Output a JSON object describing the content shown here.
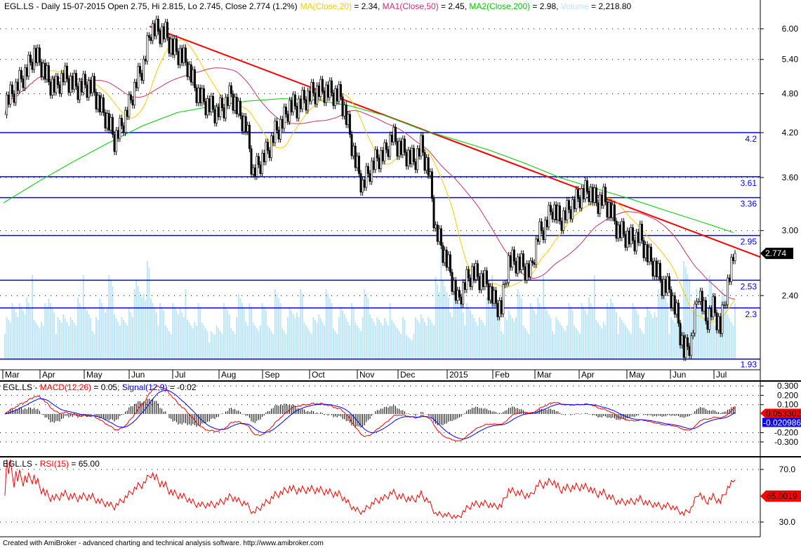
{
  "header": {
    "symbol": "EGL.LS",
    "prefix": "EGL.LS - Daily 15-07-2015 Open 2.75, Hi 2.815, Lo 2.745, Close 2.774 (1.2%)",
    "ma_label": "MA(Close,20)",
    "ma_value": " = 2.34, ",
    "ma1_label": "MA1(Close,50)",
    "ma1_value": " = 2.45, ",
    "ma2_label": "MA2(Close,200)",
    "ma2_value": " = 2.98, ",
    "vol_label": "Volume",
    "vol_value": " = 2,218.80"
  },
  "macd_header": {
    "prefix": "EGL.LS - ",
    "macd_label": "MACD(12,26)",
    "macd_value": " = 0.05, ",
    "signal_label": "Signal(12,9)",
    "signal_value": " = -0.02"
  },
  "rsi_header": {
    "prefix": "EGL.LS - ",
    "rsi_label": "RSI(15)",
    "rsi_value": " = 65.00"
  },
  "footer": "Created with AmiBroker - advanced charting and technical analysis software. http://www.amibroker.com",
  "colors": {
    "ma": "#ffcc00",
    "ma1": "#cc3366",
    "ma2": "#00cc00",
    "volume": "#bfe6f5",
    "trend": "#ff0000",
    "levels": "#0000ff",
    "macd": "#ff0000",
    "signal": "#0000ff",
    "rsi": "#ff0000"
  },
  "chart_data": [
    {
      "type": "candlestick",
      "scale": "log",
      "y_ticks": [
        "6.00",
        "5.40",
        "4.80",
        "4.20",
        "3.60",
        "3.00",
        "2.40"
      ],
      "x_ticks": [
        "Mar",
        "Apr",
        "May",
        "Jun",
        "Jul",
        "Aug",
        "Sep",
        "Oct",
        "Nov",
        "Dec",
        "2015",
        "Feb",
        "Mar",
        "Apr",
        "May",
        "Jun",
        "Jul"
      ],
      "last_price": "2.774",
      "levels": [
        {
          "value": 4.2,
          "label": "4.2"
        },
        {
          "value": 3.61,
          "label": "3.61"
        },
        {
          "value": 3.36,
          "label": "3.36"
        },
        {
          "value": 2.95,
          "label": "2.95"
        },
        {
          "value": 2.53,
          "label": "2.53"
        },
        {
          "value": 2.3,
          "label": "2.3"
        },
        {
          "value": 1.93,
          "label": "1.93"
        }
      ],
      "trendline": {
        "from": 6.05,
        "to": 2.74
      },
      "close": [
        4.65,
        4.8,
        5.0,
        5.2,
        5.5,
        5.3,
        5.0,
        4.9,
        5.1,
        5.0,
        4.9,
        4.95,
        4.9,
        4.6,
        4.4,
        4.1,
        4.3,
        4.6,
        5.0,
        5.3,
        6.0,
        5.95,
        5.9,
        5.6,
        5.5,
        5.3,
        4.9,
        4.7,
        4.6,
        4.5,
        4.6,
        4.8,
        4.5,
        4.3,
        3.65,
        3.8,
        3.95,
        4.2,
        4.35,
        4.6,
        4.6,
        4.7,
        4.8,
        4.85,
        4.85,
        4.8,
        4.75,
        4.3,
        3.8,
        3.5,
        3.7,
        3.85,
        3.9,
        4.15,
        4.0,
        3.9,
        3.8,
        4.0,
        3.7,
        3.0,
        2.8,
        2.6,
        2.35,
        2.5,
        2.6,
        2.55,
        2.5,
        2.35,
        2.3,
        2.7,
        2.7,
        2.65,
        2.6,
        2.95,
        3.05,
        3.25,
        3.1,
        3.2,
        3.3,
        3.4,
        3.45,
        3.3,
        3.35,
        3.2,
        3.0,
        2.95,
        2.9,
        2.95,
        2.75,
        2.65,
        2.5,
        2.45,
        2.25,
        1.98,
        2.05,
        2.45,
        2.2,
        2.3,
        2.15,
        2.5,
        2.774
      ],
      "ma200": [
        3.3,
        3.55,
        3.8,
        4.05,
        4.3,
        4.5,
        4.6,
        4.68,
        4.72,
        4.7,
        4.6,
        4.45,
        4.25,
        4.1,
        3.95,
        3.78,
        3.6,
        3.47,
        3.35,
        3.22,
        3.1,
        2.98
      ],
      "volume": [
        3,
        5,
        4,
        6,
        3,
        4,
        5,
        3,
        4,
        3,
        6,
        4,
        3,
        5,
        6,
        4,
        3,
        5,
        6,
        7,
        5,
        4,
        3,
        4,
        5,
        3,
        4,
        3,
        2,
        3,
        4,
        3,
        5,
        4,
        3,
        4,
        3,
        5,
        3,
        4,
        5,
        3,
        3,
        4,
        5,
        3,
        4,
        4,
        3,
        5,
        4,
        3,
        4,
        3,
        3,
        2,
        3,
        4,
        3,
        8,
        6,
        5,
        5,
        4,
        4,
        3,
        6,
        5,
        3,
        4,
        5,
        3,
        4,
        6,
        4,
        3,
        3,
        4,
        3,
        4,
        6,
        3,
        4,
        5,
        3,
        3,
        4,
        3,
        4,
        5,
        6,
        3,
        4,
        7,
        5,
        4,
        6,
        3,
        5,
        4,
        4
      ]
    },
    {
      "type": "line",
      "name": "MACD",
      "y_ticks": [
        "0.300",
        "0.200",
        "0.100",
        "-0.200",
        "-0.300"
      ],
      "macd_last": "0.053302",
      "signal_last": "-0.020986"
    },
    {
      "type": "line",
      "name": "RSI",
      "y_ticks": [
        "70.0",
        "30.0"
      ],
      "rsi_last": "65.0019"
    }
  ]
}
